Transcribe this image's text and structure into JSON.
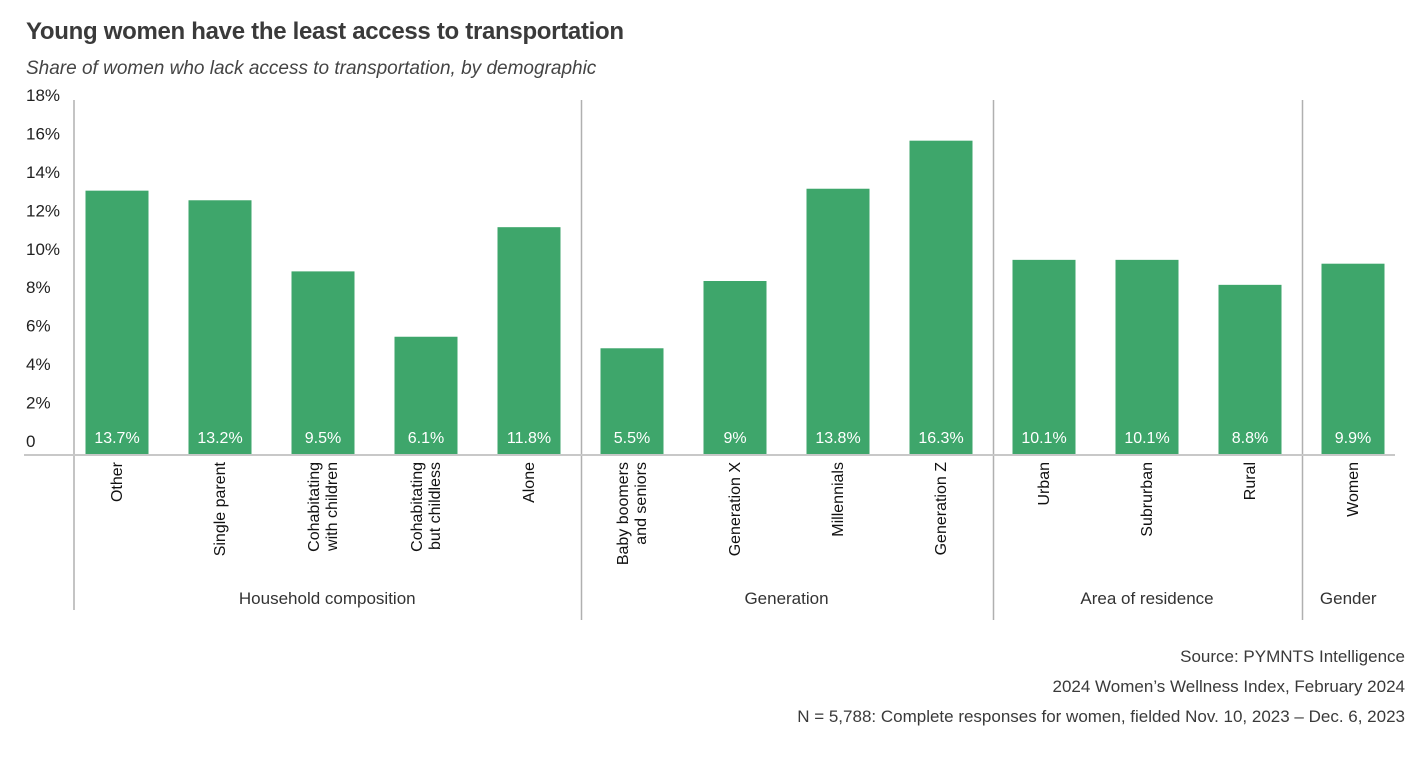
{
  "header": {
    "title": "Young women have the least access to transportation",
    "subtitle": "Share of women who lack access to transportation, by demographic"
  },
  "colors": {
    "bar": "#3ea66b",
    "axis": "#c8c8c8",
    "separator": "#b0b0b0"
  },
  "chart_data": {
    "type": "bar",
    "title": "Young women have the least access to transportation",
    "subtitle": "Share of women who lack access to transportation, by demographic",
    "xlabel": "",
    "ylabel": "",
    "ylim": [
      0,
      18
    ],
    "yticks": [
      0,
      2,
      4,
      6,
      8,
      10,
      12,
      14,
      16,
      18
    ],
    "ytick_labels": [
      "0",
      "2%",
      "4%",
      "6%",
      "8%",
      "10%",
      "12%",
      "14%",
      "16%",
      "18%"
    ],
    "grid": false,
    "legend": "none",
    "groups": [
      {
        "name": "Household composition",
        "categories": [
          {
            "label": [
              "Other"
            ],
            "value": 13.7,
            "data_label": "13.7%"
          },
          {
            "label": [
              "Single parent"
            ],
            "value": 13.2,
            "data_label": "13.2%"
          },
          {
            "label": [
              "Cohabitating",
              "with children"
            ],
            "value": 9.5,
            "data_label": "9.5%"
          },
          {
            "label": [
              "Cohabitating",
              "but childless"
            ],
            "value": 6.1,
            "data_label": "6.1%"
          },
          {
            "label": [
              "Alone"
            ],
            "value": 11.8,
            "data_label": "11.8%"
          }
        ]
      },
      {
        "name": "Generation",
        "categories": [
          {
            "label": [
              "Baby boomers",
              "and seniors"
            ],
            "value": 5.5,
            "data_label": "5.5%"
          },
          {
            "label": [
              "Generation X"
            ],
            "value": 9.0,
            "data_label": "9%"
          },
          {
            "label": [
              "Millennials"
            ],
            "value": 13.8,
            "data_label": "13.8%"
          },
          {
            "label": [
              "Generation Z"
            ],
            "value": 16.3,
            "data_label": "16.3%"
          }
        ]
      },
      {
        "name": "Area of residence",
        "categories": [
          {
            "label": [
              "Urban"
            ],
            "value": 10.1,
            "data_label": "10.1%"
          },
          {
            "label": [
              "Subrurban"
            ],
            "value": 10.1,
            "data_label": "10.1%"
          },
          {
            "label": [
              "Rural"
            ],
            "value": 8.8,
            "data_label": "8.8%"
          }
        ]
      },
      {
        "name": "Gender",
        "categories": [
          {
            "label": [
              "Women"
            ],
            "value": 9.9,
            "data_label": "9.9%"
          }
        ]
      }
    ]
  },
  "footer": {
    "source": "Source: PYMNTS Intelligence",
    "report": "2024 Women’s Wellness Index, February 2024",
    "sample": "N = 5,788: Complete responses for women, fielded Nov. 10, 2023 – Dec. 6, 2023"
  }
}
